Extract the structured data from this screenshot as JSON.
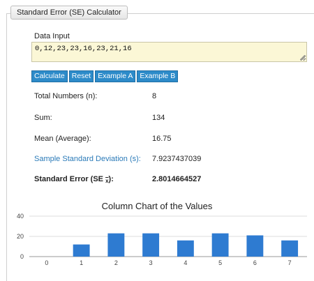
{
  "panel": {
    "title": "Standard Error (SE) Calculator"
  },
  "input": {
    "label": "Data Input",
    "value": "0,12,23,23,16,23,21,16"
  },
  "buttons": {
    "calculate": "Calculate",
    "reset": "Reset",
    "example_a": "Example A",
    "example_b": "Example B"
  },
  "results": {
    "total_label": "Total Numbers (n):",
    "total_value": "8",
    "sum_label": "Sum:",
    "sum_value": "134",
    "mean_label": "Mean (Average):",
    "mean_value": "16.75",
    "sd_label": "Sample Standard Deviation (s):",
    "sd_value": "7.9237437039",
    "se_label_prefix": "Standard Error (SE",
    "se_label_sub": "x",
    "se_label_suffix": "):",
    "se_value": "2.8014664527"
  },
  "colors": {
    "bar": "#2e7bd1",
    "link": "#2a7ab8",
    "button": "#2d8bc9"
  },
  "chart_data": {
    "type": "bar",
    "title": "Column Chart of the Values",
    "categories": [
      "0",
      "1",
      "2",
      "3",
      "4",
      "5",
      "6",
      "7"
    ],
    "values": [
      0,
      12,
      23,
      23,
      16,
      23,
      21,
      16
    ],
    "yticks": [
      0,
      20,
      40
    ],
    "ylim": [
      0,
      40
    ],
    "grid": true
  }
}
